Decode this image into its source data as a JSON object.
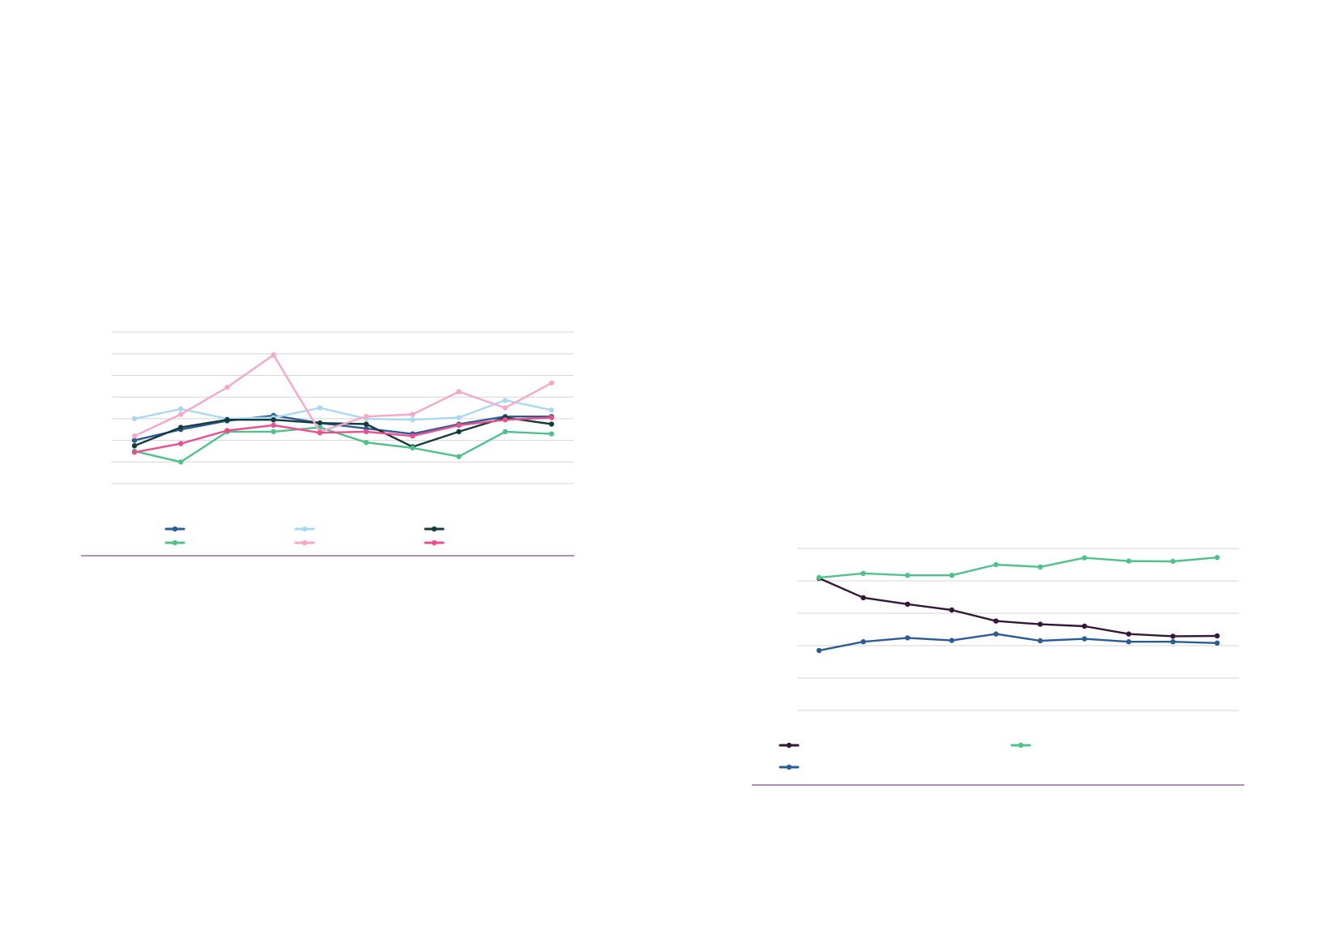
{
  "colors": {
    "gridline": "#d4d4d4",
    "rule": "#7a4f86"
  },
  "chart_data": [
    {
      "id": "left",
      "type": "line",
      "grid": true,
      "legend_position": "bottom",
      "legend_columns": 3,
      "ylim": [
        0,
        7
      ],
      "y_ticks": [
        0,
        1,
        2,
        3,
        4,
        5,
        6,
        7
      ],
      "x": [
        1,
        2,
        3,
        4,
        5,
        6,
        7,
        8,
        9,
        10
      ],
      "series": [
        {
          "color": "#2b5d94",
          "marker": "circle",
          "values": [
            2.0,
            2.5,
            2.9,
            3.15,
            2.8,
            2.55,
            2.3,
            2.75,
            3.1,
            3.1
          ]
        },
        {
          "color": "#a9d9f0",
          "marker": "circle",
          "values": [
            3.0,
            3.45,
            3.0,
            3.05,
            3.5,
            3.0,
            2.95,
            3.05,
            3.85,
            3.4
          ]
        },
        {
          "color": "#173b3c",
          "marker": "circle",
          "values": [
            1.75,
            2.6,
            2.95,
            2.95,
            2.8,
            2.75,
            1.7,
            2.4,
            3.05,
            2.75
          ]
        },
        {
          "color": "#4fc18a",
          "marker": "circle",
          "values": [
            1.5,
            1.0,
            2.4,
            2.4,
            2.6,
            1.9,
            1.65,
            1.25,
            2.4,
            2.3
          ]
        },
        {
          "color": "#f4a8c8",
          "marker": "circle",
          "values": [
            2.2,
            3.2,
            4.45,
            5.95,
            2.4,
            3.1,
            3.2,
            4.25,
            3.5,
            4.65
          ]
        },
        {
          "color": "#ec4d8d",
          "marker": "circle",
          "values": [
            1.45,
            1.85,
            2.45,
            2.7,
            2.35,
            2.4,
            2.2,
            2.7,
            2.95,
            3.05
          ]
        }
      ]
    },
    {
      "id": "right",
      "type": "line",
      "grid": true,
      "legend_position": "bottom",
      "legend_columns": 2,
      "ylim": [
        0,
        5
      ],
      "y_ticks": [
        0,
        1,
        2,
        3,
        4,
        5
      ],
      "x": [
        1,
        2,
        3,
        4,
        5,
        6,
        7,
        8,
        9,
        10
      ],
      "series": [
        {
          "color": "#35163a",
          "marker": "circle",
          "values": [
            4.08,
            3.48,
            3.28,
            3.1,
            2.76,
            2.66,
            2.6,
            2.36,
            2.29,
            2.3
          ]
        },
        {
          "color": "#4fc18a",
          "marker": "circle",
          "values": [
            4.1,
            4.23,
            4.17,
            4.17,
            4.5,
            4.43,
            4.71,
            4.61,
            4.6,
            4.72
          ]
        },
        {
          "color": "#2b5d94",
          "marker": "circle",
          "values": [
            1.85,
            2.12,
            2.24,
            2.16,
            2.36,
            2.15,
            2.21,
            2.12,
            2.12,
            2.08
          ]
        }
      ]
    }
  ]
}
